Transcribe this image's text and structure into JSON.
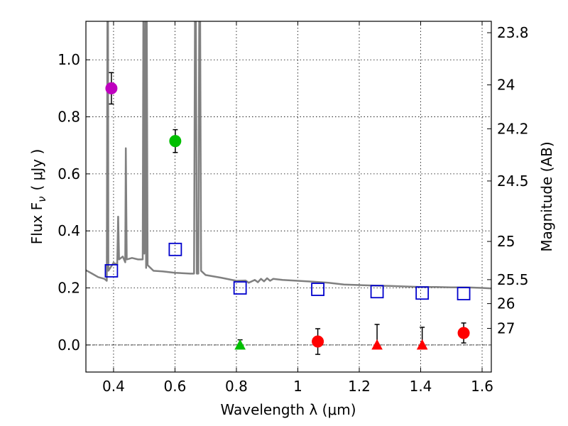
{
  "chart_data": {
    "type": "scatter",
    "xlabel": "Wavelength  λ (μm)",
    "ylabel": "Flux  F",
    "ylabel_sub": "ν",
    "ylabel_unit": "( μJy )",
    "y2label": "Magnitude (AB)",
    "xlim": [
      0.31,
      1.63
    ],
    "ylim": [
      -0.095,
      1.135
    ],
    "x_ticks": [
      0.4,
      0.6,
      0.8,
      1.0,
      1.2,
      1.4,
      1.6
    ],
    "x_tick_labels": [
      "0.4",
      "0.6",
      "0.8",
      "1",
      "1.2",
      "1.4",
      "1.6"
    ],
    "y_ticks": [
      0.0,
      0.2,
      0.4,
      0.6,
      0.8,
      1.0
    ],
    "y_tick_labels": [
      "0.0",
      "0.2",
      "0.4",
      "0.6",
      "0.8",
      "1.0"
    ],
    "mag_ticks": [
      {
        "label": "23.8",
        "flux": 1.095
      },
      {
        "label": "24",
        "flux": 0.912
      },
      {
        "label": "24.2",
        "flux": 0.758
      },
      {
        "label": "24.5",
        "flux": 0.575
      },
      {
        "label": "25",
        "flux": 0.363
      },
      {
        "label": "25.5",
        "flux": 0.229
      },
      {
        "label": "26",
        "flux": 0.145
      },
      {
        "label": "27",
        "flux": 0.058
      }
    ],
    "grid": true,
    "zero_line": 0.0,
    "spectrum": {
      "color": "#808080",
      "points": [
        [
          0.31,
          0.262
        ],
        [
          0.33,
          0.25
        ],
        [
          0.35,
          0.238
        ],
        [
          0.37,
          0.232
        ],
        [
          0.378,
          0.225
        ],
        [
          0.38,
          1.135
        ],
        [
          0.382,
          1.135
        ],
        [
          0.383,
          0.26
        ],
        [
          0.4,
          0.288
        ],
        [
          0.412,
          0.282
        ],
        [
          0.415,
          0.45
        ],
        [
          0.418,
          0.3
        ],
        [
          0.43,
          0.31
        ],
        [
          0.438,
          0.29
        ],
        [
          0.44,
          0.69
        ],
        [
          0.443,
          0.3
        ],
        [
          0.46,
          0.305
        ],
        [
          0.48,
          0.3
        ],
        [
          0.495,
          0.3
        ],
        [
          0.497,
          1.135
        ],
        [
          0.5,
          0.32
        ],
        [
          0.503,
          1.135
        ],
        [
          0.506,
          0.27
        ],
        [
          0.508,
          1.135
        ],
        [
          0.511,
          0.28
        ],
        [
          0.53,
          0.26
        ],
        [
          0.56,
          0.258
        ],
        [
          0.6,
          0.253
        ],
        [
          0.65,
          0.25
        ],
        [
          0.662,
          0.25
        ],
        [
          0.665,
          1.135
        ],
        [
          0.668,
          1.135
        ],
        [
          0.671,
          0.25
        ],
        [
          0.676,
          0.25
        ],
        [
          0.679,
          1.135
        ],
        [
          0.682,
          1.135
        ],
        [
          0.685,
          0.26
        ],
        [
          0.7,
          0.245
        ],
        [
          0.75,
          0.236
        ],
        [
          0.8,
          0.225
        ],
        [
          0.83,
          0.226
        ],
        [
          0.84,
          0.218
        ],
        [
          0.86,
          0.228
        ],
        [
          0.87,
          0.22
        ],
        [
          0.88,
          0.232
        ],
        [
          0.89,
          0.223
        ],
        [
          0.9,
          0.234
        ],
        [
          0.91,
          0.225
        ],
        [
          0.92,
          0.232
        ],
        [
          0.95,
          0.228
        ],
        [
          1.0,
          0.225
        ],
        [
          1.05,
          0.222
        ],
        [
          1.1,
          0.218
        ],
        [
          1.15,
          0.212
        ],
        [
          1.2,
          0.21
        ],
        [
          1.25,
          0.208
        ],
        [
          1.3,
          0.207
        ],
        [
          1.35,
          0.205
        ],
        [
          1.4,
          0.203
        ],
        [
          1.45,
          0.203
        ],
        [
          1.5,
          0.202
        ],
        [
          1.55,
          0.202
        ],
        [
          1.6,
          0.2
        ],
        [
          1.63,
          0.198
        ]
      ]
    },
    "model_points": {
      "marker": "open-square",
      "color": "#0000cc",
      "x": [
        0.393,
        0.601,
        0.812,
        1.065,
        1.258,
        1.405,
        1.54
      ],
      "y": [
        0.26,
        0.335,
        0.2,
        0.195,
        0.187,
        0.182,
        0.18
      ]
    },
    "detections": [
      {
        "x": 0.393,
        "y": 0.9,
        "err": 0.055,
        "color": "#bf00bf"
      },
      {
        "x": 0.601,
        "y": 0.715,
        "err": 0.04,
        "color": "#00bf00"
      },
      {
        "x": 1.065,
        "y": 0.012,
        "err": 0.045,
        "color": "#ff0000"
      },
      {
        "x": 1.54,
        "y": 0.042,
        "err": 0.035,
        "color": "#ff0000"
      }
    ],
    "upper_limits": [
      {
        "x": 0.812,
        "y": 0.0,
        "err_top": 0.018,
        "color": "#00bf00"
      },
      {
        "x": 1.258,
        "y": 0.0,
        "err_top": 0.072,
        "color": "#ff0000"
      },
      {
        "x": 1.405,
        "y": 0.0,
        "err_top": 0.062,
        "color": "#ff0000"
      }
    ]
  }
}
